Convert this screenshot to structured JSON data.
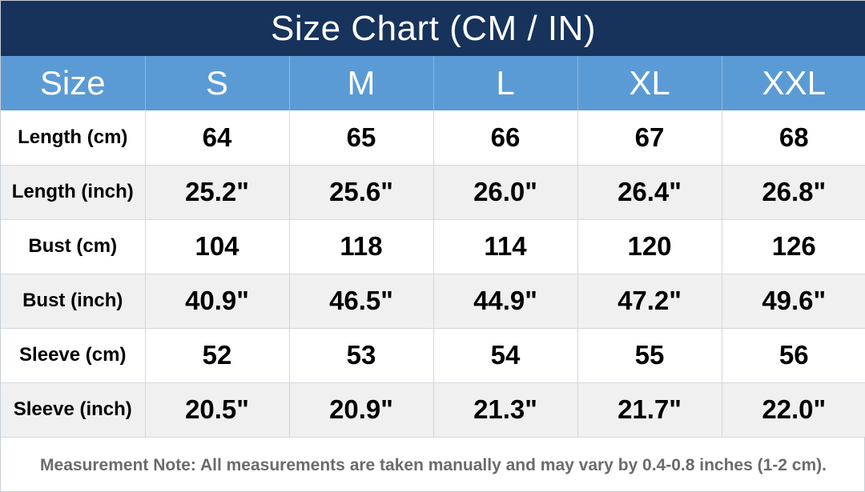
{
  "chart_data": {
    "type": "table",
    "title": "Size Chart (CM / IN)",
    "header_label": "Size",
    "columns": [
      "S",
      "M",
      "L",
      "XL",
      "XXL"
    ],
    "rows": [
      {
        "label": "Length (cm)",
        "values": [
          "64",
          "65",
          "66",
          "67",
          "68"
        ]
      },
      {
        "label": "Length (inch)",
        "values": [
          "25.2\"",
          "25.6\"",
          "26.0\"",
          "26.4\"",
          "26.8\""
        ]
      },
      {
        "label": "Bust (cm)",
        "values": [
          "104",
          "118",
          "114",
          "120",
          "126"
        ]
      },
      {
        "label": "Bust (inch)",
        "values": [
          "40.9\"",
          "46.5\"",
          "44.9\"",
          "47.2\"",
          "49.6\""
        ]
      },
      {
        "label": "Sleeve (cm)",
        "values": [
          "52",
          "53",
          "54",
          "55",
          "56"
        ]
      },
      {
        "label": "Sleeve (inch)",
        "values": [
          "20.5\"",
          "20.9\"",
          "21.3\"",
          "21.7\"",
          "22.0\""
        ]
      }
    ],
    "note": "Measurement Note: All measurements are taken manually and may vary by 0.4-0.8 inches (1-2 cm)."
  },
  "colors": {
    "title_background": "#17335c",
    "header_background": "#5b9bd5",
    "row_alt_background": "#f0f0f0",
    "note_text": "#6b6b6b"
  }
}
